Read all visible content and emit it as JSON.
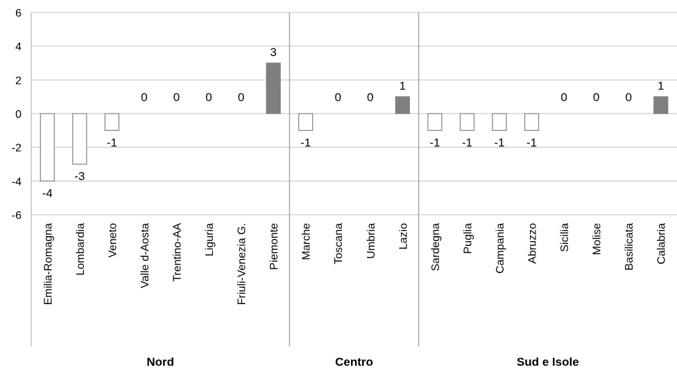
{
  "chart_data": {
    "type": "bar",
    "categories": [
      "Emilia-Romagna",
      "Lombardia",
      "Veneto",
      "Valle d-Aosta",
      "Trentino-AA",
      "Liguria",
      "Friuli-Venezia G.",
      "Piemonte",
      "Marche",
      "Toscana",
      "Umbria",
      "Lazio",
      "Sardegna",
      "Puglia",
      "Campania",
      "Abruzzo",
      "Sicilia",
      "Molise",
      "Basilicata",
      "Calabria"
    ],
    "values": [
      -4,
      -3,
      -1,
      0,
      0,
      0,
      0,
      3,
      -1,
      0,
      0,
      1,
      -1,
      -1,
      -1,
      -1,
      0,
      0,
      0,
      1
    ],
    "value_labels": [
      "-4",
      "-3",
      "-1",
      "0",
      "0",
      "0",
      "0",
      "3",
      "-1",
      "0",
      "0",
      "1",
      "-1",
      "-1",
      "-1",
      "-1",
      "0",
      "0",
      "0",
      "1"
    ],
    "groups": [
      {
        "name": "Nord",
        "start": 0,
        "end": 7
      },
      {
        "name": "Centro",
        "start": 8,
        "end": 11
      },
      {
        "name": "Sud e Isole",
        "start": 12,
        "end": 19
      }
    ],
    "y_ticks": [
      6,
      4,
      2,
      0,
      -2,
      -4,
      -6
    ],
    "y_tick_labels": [
      "6",
      "4",
      "2",
      "0",
      "-2",
      "-4",
      "-6"
    ],
    "ylim": [
      -6,
      6
    ],
    "title": "",
    "xlabel": "",
    "ylabel": "",
    "grid": true,
    "legend": "none",
    "colors": {
      "negative_fill": "#ffffff",
      "negative_stroke": "#7f7f7f",
      "positive_fill": "#7f7f7f",
      "gridline": "#bfbfbf",
      "separator": "#a6a6a6"
    }
  }
}
